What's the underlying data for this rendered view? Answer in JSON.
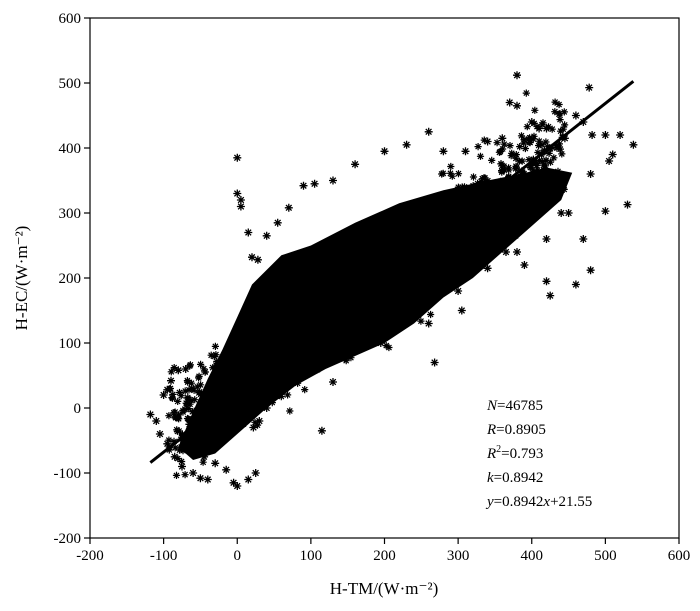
{
  "chart_data": {
    "type": "scatter",
    "title": "",
    "xlabel": "H-TM/(W·m⁻²)",
    "ylabel": "H-EC/(W·m⁻²)",
    "xlim": [
      -200,
      600
    ],
    "ylim": [
      -200,
      600
    ],
    "xticks": [
      "-200",
      "-100",
      "0",
      "100",
      "200",
      "300",
      "400",
      "500",
      "600"
    ],
    "yticks": [
      "-200",
      "-100",
      "0",
      "100",
      "200",
      "300",
      "400",
      "500",
      "600"
    ],
    "marker": "asterisk",
    "color": "#000000",
    "grid": false,
    "legend": "none",
    "point_count": 46785,
    "regression": {
      "slope": 0.8942,
      "intercept": 21.55,
      "x_range": [
        -118,
        538
      ]
    },
    "stats": {
      "n_label": "N",
      "n_value": "=46785",
      "r_label": "R",
      "r_value": "=0.8905",
      "r2_label": "R",
      "r2_sup": "2",
      "r2_value": "=0.793",
      "k_label": "k",
      "k_value": "=0.8942",
      "eq_y": "y",
      "eq_mid": "=0.8942",
      "eq_x": "x",
      "eq_tail": "+21.55"
    },
    "outliers": [
      [
        -118,
        -10
      ],
      [
        -110,
        -20
      ],
      [
        -105,
        -40
      ],
      [
        -100,
        20
      ],
      [
        -95,
        28
      ],
      [
        -95,
        -55
      ],
      [
        -90,
        42
      ],
      [
        -85,
        -75
      ],
      [
        -80,
        58
      ],
      [
        -75,
        -90
      ],
      [
        -70,
        60
      ],
      [
        -60,
        -100
      ],
      [
        -50,
        -108
      ],
      [
        -40,
        -110
      ],
      [
        -5,
        -115
      ],
      [
        0,
        -120
      ],
      [
        15,
        -110
      ],
      [
        25,
        -100
      ],
      [
        0,
        385
      ],
      [
        5,
        320
      ],
      [
        5,
        310
      ],
      [
        0,
        330
      ],
      [
        15,
        270
      ],
      [
        20,
        232
      ],
      [
        28,
        228
      ],
      [
        40,
        265
      ],
      [
        55,
        285
      ],
      [
        70,
        308
      ],
      [
        90,
        342
      ],
      [
        105,
        345
      ],
      [
        130,
        350
      ],
      [
        160,
        375
      ],
      [
        200,
        395
      ],
      [
        230,
        405
      ],
      [
        260,
        425
      ],
      [
        280,
        395
      ],
      [
        310,
        395
      ],
      [
        340,
        410
      ],
      [
        360,
        415
      ],
      [
        370,
        470
      ],
      [
        380,
        465
      ],
      [
        380,
        512
      ],
      [
        400,
        440
      ],
      [
        410,
        430
      ],
      [
        420,
        430
      ],
      [
        445,
        415
      ],
      [
        460,
        450
      ],
      [
        470,
        440
      ],
      [
        478,
        493
      ],
      [
        482,
        420
      ],
      [
        500,
        420
      ],
      [
        510,
        390
      ],
      [
        520,
        420
      ],
      [
        538,
        405
      ],
      [
        530,
        313
      ],
      [
        500,
        303
      ],
      [
        470,
        260
      ],
      [
        440,
        300
      ],
      [
        420,
        260
      ],
      [
        410,
        320
      ],
      [
        390,
        220
      ],
      [
        380,
        240
      ],
      [
        365,
        240
      ],
      [
        350,
        250
      ],
      [
        340,
        215
      ],
      [
        320,
        230
      ],
      [
        330,
        260
      ],
      [
        305,
        150
      ],
      [
        300,
        180
      ],
      [
        290,
        190
      ],
      [
        270,
        175
      ],
      [
        260,
        130
      ],
      [
        240,
        140
      ],
      [
        230,
        160
      ],
      [
        210,
        125
      ],
      [
        190,
        118
      ],
      [
        170,
        100
      ],
      [
        160,
        88
      ],
      [
        150,
        100
      ],
      [
        140,
        88
      ],
      [
        130,
        90
      ],
      [
        120,
        80
      ],
      [
        100,
        75
      ],
      [
        90,
        70
      ],
      [
        80,
        60
      ],
      [
        70,
        50
      ],
      [
        60,
        38
      ],
      [
        50,
        20
      ],
      [
        40,
        0
      ],
      [
        30,
        -20
      ],
      [
        22,
        -30
      ],
      [
        115,
        -35
      ],
      [
        130,
        40
      ],
      [
        195,
        100
      ],
      [
        268,
        70
      ],
      [
        480,
        212
      ],
      [
        425,
        173
      ],
      [
        420,
        195
      ],
      [
        460,
        190
      ],
      [
        450,
        300
      ],
      [
        380,
        280
      ],
      [
        395,
        300
      ],
      [
        315,
        330
      ],
      [
        480,
        360
      ],
      [
        505,
        380
      ],
      [
        -65,
        -25
      ],
      [
        -72,
        -45
      ],
      [
        -45,
        -75
      ],
      [
        -30,
        -85
      ],
      [
        -15,
        -95
      ]
    ]
  }
}
